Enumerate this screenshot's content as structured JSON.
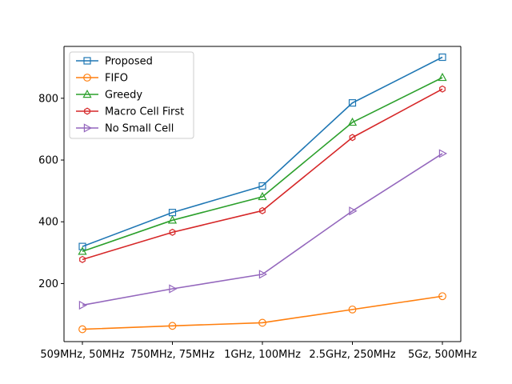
{
  "chart_data": {
    "type": "line",
    "title": "",
    "xlabel": "",
    "ylabel": "",
    "categories": [
      "509MHz, 50MHz",
      "750MHz, 75MHz",
      "1GHz, 100MHz",
      "2.5GHz, 250MHz",
      "5Gz, 500MHz"
    ],
    "ylim": [
      12,
      968
    ],
    "yticks": [
      200,
      400,
      600,
      800
    ],
    "grid": false,
    "legend_position": "upper-left",
    "series": [
      {
        "name": "Proposed",
        "color": "#1f77b4",
        "marker": "square",
        "values": [
          320,
          430,
          516,
          785,
          933
        ]
      },
      {
        "name": "FIFO",
        "color": "#ff7f0e",
        "marker": "circle",
        "values": [
          52,
          63,
          73,
          116,
          159
        ]
      },
      {
        "name": "Greedy",
        "color": "#2ca02c",
        "marker": "triangle-up",
        "values": [
          304,
          405,
          481,
          722,
          867
        ]
      },
      {
        "name": "Macro Cell First",
        "color": "#d62728",
        "marker": "hexagon",
        "values": [
          278,
          366,
          436,
          673,
          830
        ]
      },
      {
        "name": "No Small Cell",
        "color": "#9467bd",
        "marker": "triangle-right",
        "values": [
          130,
          183,
          230,
          435,
          621
        ]
      }
    ]
  }
}
